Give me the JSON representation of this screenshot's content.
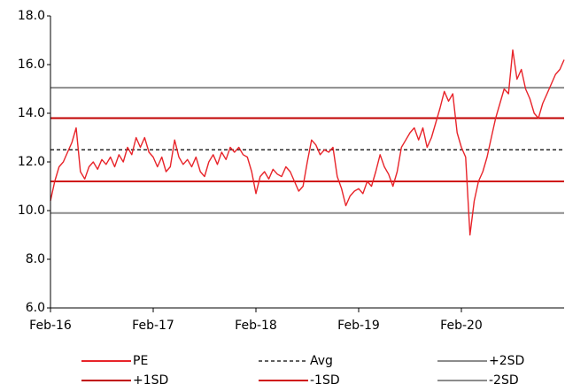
{
  "chart_data": {
    "type": "line",
    "x": [
      0,
      1,
      2,
      3,
      4,
      5,
      6,
      7,
      8,
      9,
      10,
      11,
      12,
      13,
      14,
      15,
      16,
      17,
      18,
      19,
      20,
      21,
      22,
      23,
      24,
      25,
      26,
      27,
      28,
      29,
      30,
      31,
      32,
      33,
      34,
      35,
      36,
      37,
      38,
      39,
      40,
      41,
      42,
      43,
      44,
      45,
      46,
      47,
      48,
      49,
      50,
      51,
      52,
      53,
      54,
      55,
      56,
      57,
      58,
      59,
      60,
      61,
      62,
      63,
      64,
      65,
      66,
      67,
      68,
      69,
      70,
      71,
      72,
      73,
      74,
      75,
      76,
      77,
      78,
      79,
      80,
      81,
      82,
      83,
      84,
      85,
      86,
      87,
      88,
      89,
      90,
      91,
      92,
      93,
      94,
      95,
      96,
      97,
      98,
      99,
      100,
      101,
      102,
      103,
      104,
      105,
      106,
      107,
      108,
      109,
      110,
      111,
      112,
      113,
      114,
      115,
      116,
      117,
      118,
      119,
      120
    ],
    "xlim": [
      0,
      120
    ],
    "xticks": [
      {
        "value": 0,
        "label": "Feb-16"
      },
      {
        "value": 24,
        "label": "Feb-17"
      },
      {
        "value": 48,
        "label": "Feb-18"
      },
      {
        "value": 72,
        "label": "Feb-19"
      },
      {
        "value": 96,
        "label": "Feb-20"
      }
    ],
    "ylim": [
      6,
      18
    ],
    "yticks": [
      {
        "value": 6,
        "label": "6.0"
      },
      {
        "value": 8,
        "label": "8.0"
      },
      {
        "value": 10,
        "label": "10.0"
      },
      {
        "value": 12,
        "label": "12.0"
      },
      {
        "value": 14,
        "label": "14.0"
      },
      {
        "value": 16,
        "label": "16.0"
      },
      {
        "value": 18,
        "label": "18.0"
      }
    ],
    "series": [
      {
        "name": "PE",
        "color": "#e8242a",
        "values": [
          10.4,
          11.2,
          11.8,
          12.0,
          12.4,
          12.8,
          13.4,
          11.6,
          11.3,
          11.8,
          12.0,
          11.7,
          12.1,
          11.9,
          12.2,
          11.8,
          12.3,
          12.0,
          12.6,
          12.3,
          13.0,
          12.6,
          13.0,
          12.4,
          12.2,
          11.8,
          12.2,
          11.6,
          11.8,
          12.9,
          12.2,
          11.9,
          12.1,
          11.8,
          12.2,
          11.6,
          11.4,
          12.0,
          12.3,
          11.9,
          12.4,
          12.1,
          12.6,
          12.4,
          12.6,
          12.3,
          12.2,
          11.6,
          10.7,
          11.4,
          11.6,
          11.3,
          11.7,
          11.5,
          11.4,
          11.8,
          11.6,
          11.2,
          10.8,
          11.0,
          12.0,
          12.9,
          12.7,
          12.3,
          12.5,
          12.4,
          12.6,
          11.4,
          10.9,
          10.2,
          10.6,
          10.8,
          10.9,
          10.7,
          11.2,
          11.0,
          11.6,
          12.3,
          11.8,
          11.5,
          11.0,
          11.6,
          12.6,
          12.9,
          13.2,
          13.4,
          12.9,
          13.4,
          12.6,
          13.0,
          13.6,
          14.2,
          14.9,
          14.5,
          14.8,
          13.2,
          12.6,
          12.2,
          9.0,
          10.4,
          11.2,
          11.6,
          12.2,
          13.0,
          13.8,
          14.4,
          15.0,
          14.8,
          16.6,
          15.4,
          15.8,
          15.0,
          14.6,
          14.0,
          13.8,
          14.4,
          14.8,
          15.2,
          15.6,
          15.8,
          16.2
        ]
      }
    ],
    "reference_lines": [
      {
        "name": "Avg",
        "value": 12.5,
        "color": "#000000",
        "dashed": true
      },
      {
        "name": "+2SD",
        "value": 15.05,
        "color": "#8c8c8c",
        "dashed": false
      },
      {
        "name": "+1SD",
        "value": 13.8,
        "color": "#c00000",
        "dashed": false
      },
      {
        "name": "-1SD",
        "value": 11.2,
        "color": "#d01010",
        "dashed": false
      },
      {
        "name": "-2SD",
        "value": 9.9,
        "color": "#8c8c8c",
        "dashed": false
      }
    ]
  }
}
